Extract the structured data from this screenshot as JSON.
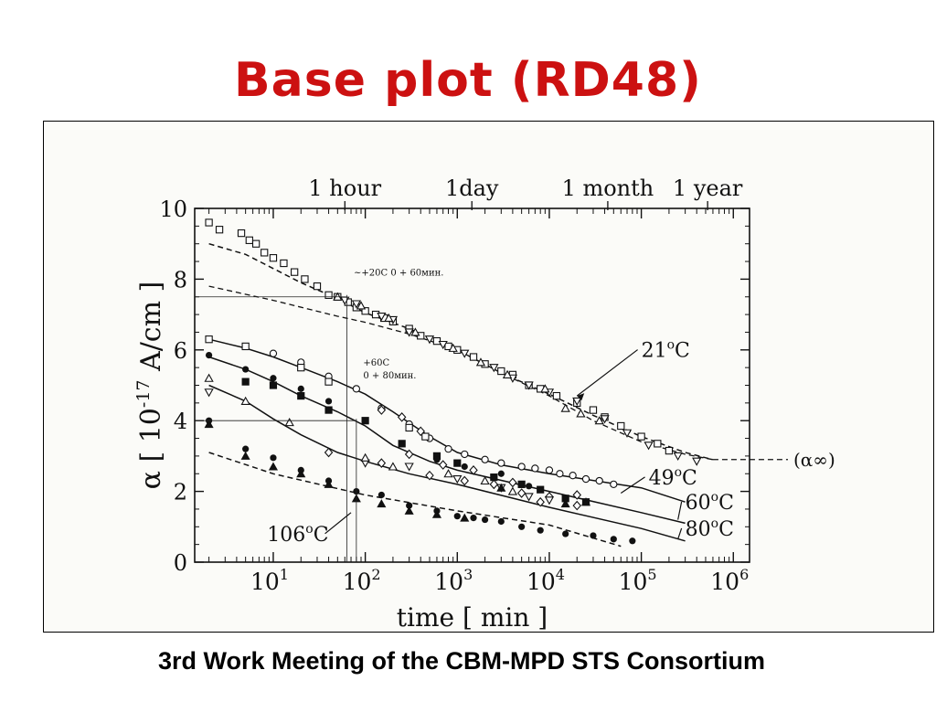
{
  "slide": {
    "title": "Base plot (RD48)",
    "footer": "3rd Work Meeting of the CBM-MPD STS Consortium",
    "title_color": "#cc1111"
  },
  "chart_data": {
    "type": "scatter",
    "xscale": "log",
    "xlim": [
      1.4,
      1500000
    ],
    "ylim": [
      0,
      10
    ],
    "xlabel": "time  [ min ]",
    "ylabel": "α [ 10",
    "ylabel_sup": "-17",
    "ylabel_tail": " A/cm ]",
    "x_ticks": [
      {
        "x": 10,
        "base": "10",
        "exp": "1"
      },
      {
        "x": 100,
        "base": "10",
        "exp": "2"
      },
      {
        "x": 1000,
        "base": "10",
        "exp": "3"
      },
      {
        "x": 10000,
        "base": "10",
        "exp": "4"
      },
      {
        "x": 100000,
        "base": "10",
        "exp": "5"
      },
      {
        "x": 1000000,
        "base": "10",
        "exp": "6"
      }
    ],
    "y_ticks": [
      0,
      2,
      4,
      6,
      8,
      10
    ],
    "top_axis": [
      {
        "x": 60,
        "label": "1 hour"
      },
      {
        "x": 1440,
        "label": "1day"
      },
      {
        "x": 43200,
        "label": "1 month"
      },
      {
        "x": 525600,
        "label": "1 year"
      }
    ],
    "alpha_inf": {
      "y": 2.9,
      "from_x": 600000,
      "label": "(α∞)"
    },
    "series": [
      {
        "name": "21°C",
        "name_main": "21",
        "name_sup": "o",
        "name_tail": "C",
        "curve": [
          [
            2,
            9.0
          ],
          [
            5,
            8.7
          ],
          [
            10,
            8.3
          ],
          [
            20,
            7.9
          ],
          [
            50,
            7.45
          ],
          [
            100,
            7.05
          ],
          [
            300,
            6.6
          ],
          [
            1000,
            6.0
          ],
          [
            3000,
            5.35
          ],
          [
            10000,
            4.75
          ],
          [
            30000,
            4.15
          ],
          [
            100000,
            3.55
          ],
          [
            300000,
            3.1
          ],
          [
            600000,
            2.9
          ]
        ],
        "fit": [
          [
            2,
            7.8
          ],
          [
            10,
            7.4
          ],
          [
            50,
            6.95
          ],
          [
            100,
            6.78
          ],
          [
            300,
            6.45
          ],
          [
            1000,
            6.0
          ],
          [
            3000,
            5.35
          ],
          [
            10000,
            4.7
          ],
          [
            30000,
            4.0
          ],
          [
            100000,
            3.4
          ],
          [
            300000,
            3.05
          ],
          [
            600000,
            2.9
          ]
        ],
        "label_x": 100000,
        "label_y": 5.8,
        "markers": {
          "square": [
            [
              2,
              9.6
            ],
            [
              2.6,
              9.4
            ],
            [
              4.5,
              9.3
            ],
            [
              5.5,
              9.1
            ],
            [
              6.5,
              9.0
            ],
            [
              8,
              8.75
            ],
            [
              10,
              8.6
            ],
            [
              13,
              8.45
            ],
            [
              17,
              8.2
            ],
            [
              22,
              8.0
            ],
            [
              30,
              7.8
            ],
            [
              40,
              7.55
            ],
            [
              50,
              7.5
            ],
            [
              65,
              7.35
            ],
            [
              80,
              7.2
            ],
            [
              100,
              7.1
            ],
            [
              130,
              7.0
            ],
            [
              160,
              6.9
            ],
            [
              200,
              6.8
            ],
            [
              300,
              6.6
            ],
            [
              400,
              6.4
            ],
            [
              600,
              6.25
            ],
            [
              800,
              6.1
            ],
            [
              1000,
              6.0
            ],
            [
              1500,
              5.8
            ],
            [
              2000,
              5.6
            ],
            [
              3000,
              5.4
            ],
            [
              4000,
              5.3
            ],
            [
              6000,
              5.0
            ],
            [
              8000,
              4.9
            ],
            [
              12000,
              4.7
            ],
            [
              20000,
              4.5
            ],
            [
              30000,
              4.3
            ],
            [
              40000,
              4.1
            ],
            [
              60000,
              3.85
            ],
            [
              100000,
              3.55
            ],
            [
              150000,
              3.35
            ],
            [
              200000,
              3.15
            ]
          ],
          "down_triangle": [
            [
              60,
              7.4
            ],
            [
              80,
              7.3
            ],
            [
              150,
              6.95
            ],
            [
              200,
              6.85
            ],
            [
              300,
              6.5
            ],
            [
              500,
              6.3
            ],
            [
              700,
              6.15
            ],
            [
              1200,
              5.9
            ],
            [
              2500,
              5.5
            ],
            [
              4000,
              5.2
            ],
            [
              6000,
              5.0
            ],
            [
              10000,
              4.8
            ],
            [
              20000,
              4.55
            ],
            [
              40000,
              4.05
            ],
            [
              70000,
              3.65
            ],
            [
              120000,
              3.3
            ],
            [
              250000,
              3.0
            ],
            [
              400000,
              2.85
            ]
          ],
          "up_triangle": [
            [
              50,
              7.5
            ],
            [
              90,
              7.25
            ],
            [
              180,
              6.9
            ],
            [
              350,
              6.5
            ],
            [
              900,
              6.05
            ],
            [
              1800,
              5.65
            ],
            [
              3500,
              5.3
            ],
            [
              9000,
              4.9
            ],
            [
              15000,
              4.35
            ],
            [
              22000,
              4.2
            ],
            [
              35000,
              4.0
            ]
          ]
        }
      },
      {
        "name": "49°C",
        "name_main": "49",
        "name_sup": "o",
        "name_tail": "C",
        "curve": [
          [
            2,
            6.3
          ],
          [
            5,
            6.05
          ],
          [
            10,
            5.8
          ],
          [
            20,
            5.5
          ],
          [
            50,
            5.1
          ],
          [
            100,
            4.75
          ],
          [
            200,
            4.25
          ],
          [
            500,
            3.55
          ],
          [
            1000,
            3.1
          ],
          [
            3000,
            2.75
          ],
          [
            10000,
            2.5
          ],
          [
            100000,
            2.1
          ],
          [
            300000,
            1.7
          ]
        ],
        "label_x": 120000,
        "label_y": 2.2,
        "markers": {
          "circle": [
            [
              10,
              5.9
            ],
            [
              20,
              5.65
            ],
            [
              40,
              5.25
            ],
            [
              80,
              4.9
            ],
            [
              150,
              4.35
            ],
            [
              300,
              3.9
            ],
            [
              500,
              3.5
            ],
            [
              800,
              3.2
            ],
            [
              1200,
              3.05
            ],
            [
              2000,
              2.9
            ],
            [
              3000,
              2.8
            ],
            [
              5000,
              2.7
            ],
            [
              7000,
              2.65
            ],
            [
              10000,
              2.6
            ],
            [
              13000,
              2.5
            ],
            [
              18000,
              2.45
            ],
            [
              25000,
              2.35
            ],
            [
              35000,
              2.3
            ],
            [
              50000,
              2.2
            ]
          ],
          "square": [
            [
              2,
              6.3
            ],
            [
              5,
              6.1
            ],
            [
              20,
              5.5
            ],
            [
              40,
              5.1
            ],
            [
              300,
              3.8
            ],
            [
              450,
              3.55
            ]
          ],
          "diamond": [
            [
              150,
              4.3
            ],
            [
              250,
              4.1
            ],
            [
              400,
              3.7
            ]
          ]
        }
      },
      {
        "name": "60°C",
        "name_main": "60",
        "name_sup": "o",
        "name_tail": "C",
        "curve": [
          [
            2,
            5.8
          ],
          [
            5,
            5.45
          ],
          [
            10,
            5.1
          ],
          [
            20,
            4.7
          ],
          [
            50,
            4.25
          ],
          [
            100,
            3.85
          ],
          [
            200,
            3.3
          ],
          [
            500,
            2.85
          ],
          [
            1000,
            2.6
          ],
          [
            10000,
            2.0
          ],
          [
            100000,
            1.4
          ],
          [
            300000,
            1.1
          ]
        ],
        "label_x": 300000,
        "label_y": 1.5,
        "markers": {
          "solid_square": [
            [
              5,
              5.1
            ],
            [
              10,
              5.0
            ],
            [
              20,
              4.7
            ],
            [
              40,
              4.3
            ],
            [
              100,
              4.0
            ],
            [
              250,
              3.35
            ],
            [
              600,
              3.0
            ],
            [
              1000,
              2.8
            ],
            [
              2500,
              2.4
            ],
            [
              5000,
              2.2
            ],
            [
              8000,
              2.05
            ],
            [
              15000,
              1.8
            ],
            [
              25000,
              1.7
            ]
          ],
          "solid_circle": [
            [
              2,
              5.85
            ],
            [
              5,
              5.45
            ],
            [
              10,
              5.2
            ],
            [
              20,
              4.9
            ],
            [
              40,
              4.55
            ],
            [
              600,
              2.9
            ],
            [
              1200,
              2.7
            ],
            [
              3000,
              2.5
            ],
            [
              6000,
              2.15
            ]
          ],
          "diamond": [
            [
              300,
              3.05
            ],
            [
              700,
              2.75
            ],
            [
              1500,
              2.6
            ],
            [
              4000,
              2.25
            ],
            [
              10000,
              1.85
            ],
            [
              20000,
              1.9
            ]
          ]
        }
      },
      {
        "name": "80°C",
        "name_main": "80",
        "name_sup": "o",
        "name_tail": "C",
        "curve": [
          [
            2,
            5.0
          ],
          [
            5,
            4.55
          ],
          [
            10,
            4.05
          ],
          [
            20,
            3.6
          ],
          [
            50,
            3.1
          ],
          [
            100,
            2.85
          ],
          [
            300,
            2.5
          ],
          [
            1000,
            2.2
          ],
          [
            10000,
            1.55
          ],
          [
            100000,
            0.95
          ],
          [
            300000,
            0.6
          ]
        ],
        "label_x": 300000,
        "label_y": 0.75,
        "markers": {
          "down_triangle": [
            [
              2,
              4.8
            ],
            [
              100,
              2.8
            ],
            [
              300,
              2.7
            ],
            [
              1000,
              2.35
            ],
            [
              3000,
              2.1
            ],
            [
              6000,
              1.85
            ],
            [
              10000,
              1.75
            ]
          ],
          "up_triangle": [
            [
              2,
              5.2
            ],
            [
              5,
              4.55
            ],
            [
              15,
              3.95
            ],
            [
              100,
              2.95
            ],
            [
              200,
              2.7
            ],
            [
              800,
              2.5
            ],
            [
              2000,
              2.3
            ],
            [
              4000,
              2.0
            ]
          ],
          "diamond": [
            [
              40,
              3.1
            ],
            [
              150,
              2.8
            ],
            [
              500,
              2.45
            ],
            [
              1200,
              2.3
            ],
            [
              2500,
              2.2
            ],
            [
              5000,
              1.95
            ],
            [
              8000,
              1.7
            ],
            [
              20000,
              1.6
            ]
          ],
          "solid_triangle": [
            [
              3000,
              2.1
            ],
            [
              15000,
              1.65
            ],
            [
              25000,
              1.7
            ]
          ]
        }
      },
      {
        "name": "106°C",
        "name_main": "106",
        "name_sup": "o",
        "name_tail": "C",
        "curve": [
          [
            2,
            3.1
          ],
          [
            10,
            2.5
          ],
          [
            100,
            1.9
          ],
          [
            1000,
            1.45
          ],
          [
            10000,
            1.05
          ],
          [
            60000,
            0.45
          ]
        ],
        "label_x": 40,
        "label_y": 0.6,
        "markers": {
          "solid_circle": [
            [
              2,
              4.0
            ],
            [
              5,
              3.2
            ],
            [
              10,
              2.95
            ],
            [
              20,
              2.6
            ],
            [
              40,
              2.3
            ],
            [
              80,
              2.0
            ],
            [
              150,
              1.9
            ],
            [
              300,
              1.6
            ],
            [
              600,
              1.45
            ],
            [
              1000,
              1.3
            ],
            [
              1500,
              1.25
            ],
            [
              2000,
              1.2
            ],
            [
              3000,
              1.15
            ],
            [
              5000,
              1.0
            ],
            [
              8000,
              0.9
            ],
            [
              15000,
              0.8
            ],
            [
              30000,
              0.75
            ],
            [
              50000,
              0.65
            ],
            [
              80000,
              0.6
            ]
          ],
          "solid_triangle": [
            [
              2,
              3.9
            ],
            [
              5,
              3.0
            ],
            [
              10,
              2.7
            ],
            [
              20,
              2.5
            ],
            [
              40,
              2.2
            ],
            [
              80,
              1.8
            ],
            [
              150,
              1.65
            ],
            [
              300,
              1.45
            ],
            [
              600,
              1.35
            ],
            [
              1200,
              1.25
            ]
          ]
        }
      }
    ],
    "annotations": [
      {
        "text": "~+20С 0 + 60мин.",
        "x": 75,
        "y": 8.1
      },
      {
        "text": "+60С",
        "x": 95,
        "y": 5.55
      },
      {
        "text": "0 + 80мин.",
        "x": 95,
        "y": 5.2
      }
    ],
    "guides": [
      {
        "x": 63,
        "y": 7.5,
        "x0": 2
      },
      {
        "x": 80,
        "y": 4.0,
        "x0": 2
      }
    ]
  }
}
